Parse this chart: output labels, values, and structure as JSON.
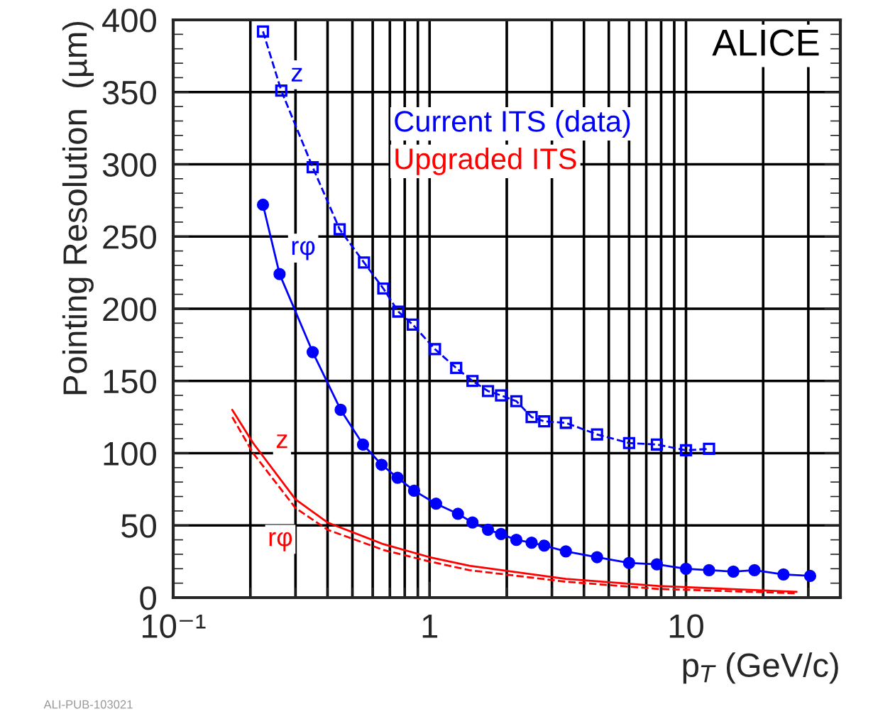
{
  "chart_data": {
    "type": "line",
    "xlabel": "p$_{T}$ (GeV/c)",
    "ylabel": "Pointing Resolution  (µm)",
    "log": "x",
    "xlim": [
      0.1,
      40
    ],
    "ylim": [
      0,
      400
    ],
    "xticks": [
      {
        "value": 0.1,
        "label": "10⁻¹"
      },
      1,
      10
    ],
    "yticks": [
      0,
      50,
      100,
      150,
      200,
      250,
      300,
      350,
      400
    ],
    "grid": true,
    "legend": false,
    "series": [
      {
        "name": "z",
        "color": "#0000ff",
        "marker": "square",
        "line_style": "dashed",
        "x": [
          0.224,
          0.264,
          0.35,
          0.446,
          0.555,
          0.66,
          0.755,
          0.86,
          1.05,
          1.27,
          1.47,
          1.69,
          1.9,
          2.18,
          2.5,
          2.8,
          3.4,
          4.5,
          6.0,
          7.7,
          10,
          12.3
        ],
        "values": [
          392,
          351,
          298,
          255,
          232,
          214,
          198,
          189,
          172,
          159,
          150,
          143,
          140,
          136,
          125,
          122,
          121,
          113,
          107,
          106,
          102,
          103
        ]
      },
      {
        "name": "rφ",
        "color": "#0000ff",
        "marker": "circle",
        "line_style": "solid",
        "x": [
          0.224,
          0.26,
          0.35,
          0.45,
          0.55,
          0.65,
          0.75,
          0.87,
          1.06,
          1.29,
          1.47,
          1.69,
          1.9,
          2.18,
          2.5,
          2.8,
          3.4,
          4.5,
          6.0,
          7.7,
          10,
          12.3,
          15.3,
          18.5,
          24,
          30.5
        ],
        "values": [
          272,
          224,
          170,
          130,
          106,
          92,
          83,
          74,
          65,
          58,
          52,
          47,
          44,
          40,
          38,
          36,
          32,
          28,
          24,
          23,
          20,
          19,
          18,
          19,
          16,
          15
        ]
      },
      {
        "name": "z",
        "color": "#ff0000",
        "marker": "none",
        "line_style": "solid",
        "x": [
          0.17,
          0.205,
          0.3,
          0.4,
          0.66,
          1.0,
          1.43,
          3.4,
          7.8,
          27
        ],
        "values": [
          130,
          107,
          68,
          52,
          37,
          28,
          22,
          13,
          8,
          4
        ]
      },
      {
        "name": "rφ",
        "color": "#ff0000",
        "marker": "none",
        "line_style": "dashed",
        "x": [
          0.17,
          0.205,
          0.3,
          0.4,
          0.66,
          1.0,
          1.43,
          3.4,
          7.8,
          27
        ],
        "values": [
          125,
          100,
          62,
          47,
          33,
          25,
          19,
          11,
          6,
          3
        ]
      }
    ],
    "annotations": [
      "ALICE",
      "Current ITS (data)",
      "Upgraded ITS",
      "ALI-PUB-103021"
    ]
  }
}
